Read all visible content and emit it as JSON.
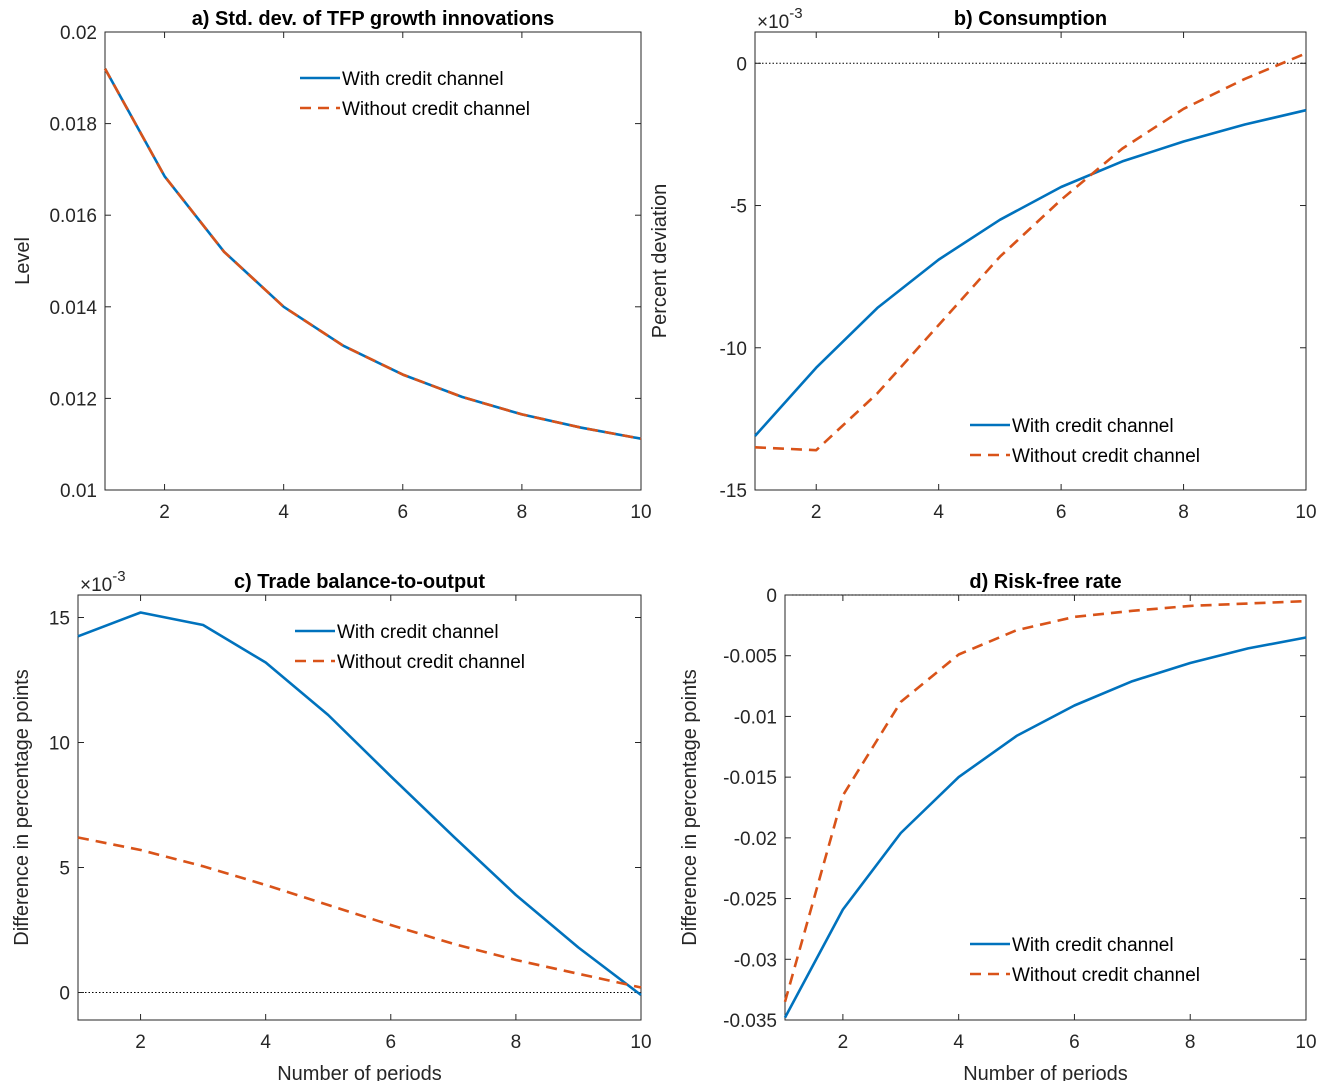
{
  "chart_data": [
    {
      "id": "a",
      "type": "line",
      "title": "a) Std. dev. of TFP growth innovations",
      "xlabel": "",
      "ylabel": "Level",
      "xlim": [
        1,
        10
      ],
      "ylim": [
        0.01,
        0.02
      ],
      "xticks": [
        2,
        4,
        6,
        8,
        10
      ],
      "yticks": [
        0.01,
        0.012,
        0.014,
        0.016,
        0.018,
        0.02
      ],
      "ytick_labels": [
        "0.01",
        "0.012",
        "0.014",
        "0.016",
        "0.018",
        "0.02"
      ],
      "exponent_label": "",
      "zero_line": false,
      "legend": "top-right",
      "x": [
        1,
        2,
        3,
        4,
        5,
        6,
        7,
        8,
        9,
        10
      ],
      "series": [
        {
          "name": "With credit channel",
          "color": "#0072BD",
          "dash": "solid",
          "values": [
            0.0192,
            0.01685,
            0.0152,
            0.014,
            0.01315,
            0.01252,
            0.01203,
            0.01165,
            0.01136,
            0.01112
          ]
        },
        {
          "name": "Without credit channel",
          "color": "#D95319",
          "dash": "dashed",
          "values": [
            0.0192,
            0.01685,
            0.0152,
            0.014,
            0.01315,
            0.01252,
            0.01203,
            0.01165,
            0.01136,
            0.01112
          ]
        }
      ]
    },
    {
      "id": "b",
      "type": "line",
      "title": "b) Consumption",
      "xlabel": "",
      "ylabel": "Percent deviation",
      "xlim": [
        1,
        10
      ],
      "ylim": [
        -15,
        1.1
      ],
      "xticks": [
        2,
        4,
        6,
        8,
        10
      ],
      "yticks": [
        -15,
        -10,
        -5,
        0
      ],
      "ytick_labels": [
        "-15",
        "-10",
        "-5",
        "0"
      ],
      "exponent_label": "×10",
      "exponent_power": "-3",
      "zero_line": true,
      "legend": "bottom-right",
      "x": [
        1,
        2,
        3,
        4,
        5,
        6,
        7,
        8,
        9,
        10
      ],
      "series": [
        {
          "name": "With credit channel",
          "color": "#0072BD",
          "dash": "solid",
          "values": [
            -13.1,
            -10.7,
            -8.6,
            -6.9,
            -5.5,
            -4.35,
            -3.45,
            -2.75,
            -2.15,
            -1.65
          ]
        },
        {
          "name": "Without credit channel",
          "color": "#D95319",
          "dash": "dashed",
          "values": [
            -13.5,
            -13.6,
            -11.6,
            -9.2,
            -6.8,
            -4.8,
            -3.0,
            -1.6,
            -0.55,
            0.35
          ]
        }
      ]
    },
    {
      "id": "c",
      "type": "line",
      "title": "c) Trade balance-to-output",
      "xlabel": "Number of periods",
      "ylabel": "Difference in percentage points",
      "xlim": [
        1,
        10
      ],
      "ylim": [
        -1.1,
        15.9
      ],
      "xticks": [
        2,
        4,
        6,
        8,
        10
      ],
      "yticks": [
        0,
        5,
        10,
        15
      ],
      "ytick_labels": [
        "0",
        "5",
        "10",
        "15"
      ],
      "exponent_label": "×10",
      "exponent_power": "-3",
      "zero_line": true,
      "legend": "top-right",
      "x": [
        1,
        2,
        3,
        4,
        5,
        6,
        7,
        8,
        9,
        10
      ],
      "series": [
        {
          "name": "With credit channel",
          "color": "#0072BD",
          "dash": "solid",
          "values": [
            14.25,
            15.2,
            14.7,
            13.2,
            11.1,
            8.65,
            6.25,
            3.9,
            1.8,
            -0.1
          ]
        },
        {
          "name": "Without credit channel",
          "color": "#D95319",
          "dash": "dashed",
          "values": [
            6.2,
            5.7,
            5.05,
            4.3,
            3.5,
            2.7,
            1.95,
            1.3,
            0.75,
            0.2
          ]
        }
      ]
    },
    {
      "id": "d",
      "type": "line",
      "title": "d) Risk-free rate",
      "xlabel": "Number of periods",
      "ylabel": "Difference in percentage points",
      "xlim": [
        1,
        10
      ],
      "ylim": [
        -0.035,
        0
      ],
      "xticks": [
        2,
        4,
        6,
        8,
        10
      ],
      "yticks": [
        -0.035,
        -0.03,
        -0.025,
        -0.02,
        -0.015,
        -0.01,
        -0.005,
        0
      ],
      "ytick_labels": [
        "-0.035",
        "-0.03",
        "-0.025",
        "-0.02",
        "-0.015",
        "-0.01",
        "-0.005",
        "0"
      ],
      "exponent_label": "",
      "zero_line": true,
      "legend": "bottom-right",
      "x": [
        1,
        2,
        3,
        4,
        5,
        6,
        7,
        8,
        9,
        10
      ],
      "series": [
        {
          "name": "With credit channel",
          "color": "#0072BD",
          "dash": "solid",
          "values": [
            -0.0348,
            -0.0259,
            -0.0196,
            -0.015,
            -0.0116,
            -0.0091,
            -0.0071,
            -0.0056,
            -0.0044,
            -0.0035
          ]
        },
        {
          "name": "Without credit channel",
          "color": "#D95319",
          "dash": "dashed",
          "values": [
            -0.0335,
            -0.0165,
            -0.0088,
            -0.0049,
            -0.0029,
            -0.0018,
            -0.0013,
            -0.0009,
            -0.0007,
            -0.0005
          ]
        }
      ]
    }
  ]
}
